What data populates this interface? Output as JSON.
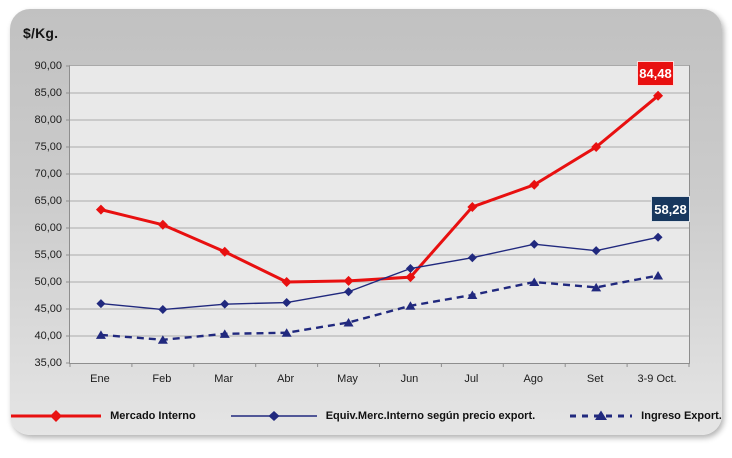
{
  "chart_data": {
    "type": "line",
    "title": "$/Kg.",
    "categories": [
      "Ene",
      "Feb",
      "Mar",
      "Abr",
      "May",
      "Jun",
      "Jul",
      "Ago",
      "Set",
      "3-9 Oct."
    ],
    "series": [
      {
        "name": "Mercado Interno",
        "color": "#e81010",
        "style": "solid",
        "marker": "diamond",
        "values": [
          63.4,
          60.6,
          55.6,
          50.0,
          50.2,
          50.9,
          63.9,
          68.0,
          75.0,
          84.48
        ]
      },
      {
        "name": "Equiv.Merc.Interno según precio export.",
        "color": "#21297e",
        "style": "solid",
        "marker": "diamond",
        "values": [
          46.0,
          44.9,
          45.9,
          46.2,
          48.2,
          52.5,
          54.5,
          57.0,
          55.8,
          58.28
        ]
      },
      {
        "name": "Ingreso Export.",
        "color": "#21297e",
        "style": "dashed",
        "marker": "triangle",
        "values": [
          40.2,
          39.3,
          40.4,
          40.6,
          42.5,
          45.6,
          47.6,
          50.0,
          49.0,
          51.2
        ]
      }
    ],
    "ylim": [
      35,
      90
    ],
    "ytick_step": 5,
    "grid": "horizontal",
    "legend_position": "bottom",
    "plot_bg": "#e9e9e9",
    "gridline_color": "#ababab",
    "axis_color": "#8e8e8e",
    "callouts": [
      {
        "series": 0,
        "label": "84,48",
        "bg": "#e81010"
      },
      {
        "series": 1,
        "label": "58,28",
        "bg": "#17375e"
      }
    ]
  }
}
